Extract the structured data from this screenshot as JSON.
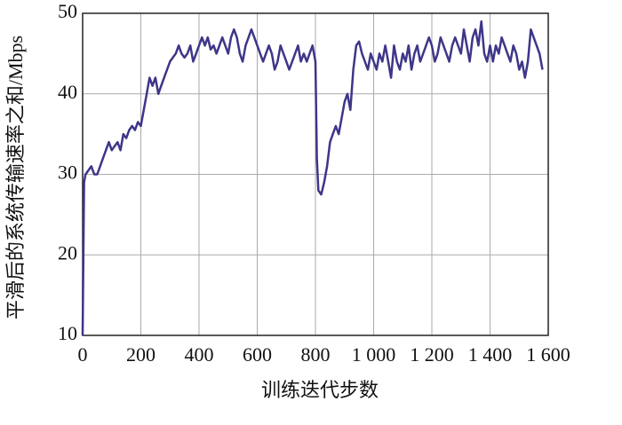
{
  "chart_data": {
    "type": "line",
    "xlabel": "训练迭代步数",
    "ylabel": "平滑后的系统传输速率之和/Mbps",
    "xlim": [
      0,
      1600
    ],
    "ylim": [
      10,
      50
    ],
    "xticks": [
      0,
      200,
      400,
      600,
      800,
      {
        "value": 1000,
        "label": "1 000"
      },
      {
        "value": 1200,
        "label": "1 200"
      },
      {
        "value": 1400,
        "label": "1 400"
      },
      {
        "value": 1600,
        "label": "1 600"
      }
    ],
    "yticks": [
      10,
      20,
      30,
      40,
      50
    ],
    "grid": true,
    "x": [
      0,
      5,
      10,
      20,
      30,
      40,
      50,
      60,
      70,
      80,
      90,
      100,
      110,
      120,
      130,
      140,
      150,
      160,
      170,
      180,
      190,
      200,
      210,
      220,
      230,
      240,
      250,
      260,
      270,
      280,
      290,
      300,
      310,
      320,
      330,
      340,
      350,
      360,
      370,
      380,
      390,
      400,
      410,
      420,
      430,
      440,
      450,
      460,
      470,
      480,
      490,
      500,
      510,
      520,
      530,
      540,
      550,
      560,
      570,
      580,
      590,
      600,
      610,
      620,
      630,
      640,
      650,
      660,
      670,
      680,
      690,
      700,
      710,
      720,
      730,
      740,
      750,
      760,
      770,
      780,
      790,
      800,
      805,
      810,
      820,
      830,
      840,
      850,
      860,
      870,
      880,
      890,
      900,
      910,
      920,
      930,
      940,
      950,
      960,
      970,
      980,
      990,
      1000,
      1010,
      1020,
      1030,
      1040,
      1050,
      1060,
      1070,
      1080,
      1090,
      1100,
      1110,
      1120,
      1130,
      1140,
      1150,
      1160,
      1170,
      1180,
      1190,
      1200,
      1210,
      1220,
      1230,
      1240,
      1250,
      1260,
      1270,
      1280,
      1290,
      1300,
      1310,
      1320,
      1330,
      1340,
      1350,
      1360,
      1370,
      1380,
      1390,
      1400,
      1410,
      1420,
      1430,
      1440,
      1450,
      1460,
      1470,
      1480,
      1490,
      1500,
      1510,
      1520,
      1530,
      1540,
      1550,
      1560,
      1570,
      1580
    ],
    "series": [
      {
        "color": "#3d3689",
        "values": [
          10,
          29,
          30,
          30.5,
          31,
          30,
          30,
          31,
          32,
          33,
          34,
          33,
          33.5,
          34,
          33,
          35,
          34.5,
          35.5,
          36,
          35.5,
          36.5,
          36,
          38,
          40,
          42,
          41,
          42,
          40,
          41,
          42,
          43,
          44,
          44.5,
          45,
          46,
          45,
          44.5,
          45,
          46,
          44,
          45,
          46,
          47,
          46,
          47,
          45.5,
          46,
          45,
          46,
          47,
          46,
          45,
          47,
          48,
          47,
          45,
          44,
          46,
          47,
          48,
          47,
          46,
          45,
          44,
          45,
          46,
          45,
          43,
          44,
          46,
          45,
          44,
          43,
          44,
          45,
          46,
          44,
          45,
          44,
          45,
          46,
          44,
          32,
          28,
          27.5,
          29,
          31,
          34,
          35,
          36,
          35,
          37,
          39,
          40,
          38,
          43,
          46,
          46.5,
          45,
          44,
          43,
          45,
          44,
          43,
          45,
          44,
          46,
          44,
          42,
          46,
          44,
          43,
          45,
          44,
          46,
          43,
          45,
          46,
          44,
          45,
          46,
          47,
          46,
          44,
          45,
          47,
          46,
          45,
          44,
          46,
          47,
          46,
          45,
          48,
          46,
          44,
          47,
          48,
          46,
          49,
          45,
          44,
          46,
          44,
          46,
          45,
          47,
          46,
          45,
          44,
          46,
          45,
          43,
          44,
          42,
          44,
          48,
          47,
          46,
          45,
          43
        ]
      }
    ]
  }
}
